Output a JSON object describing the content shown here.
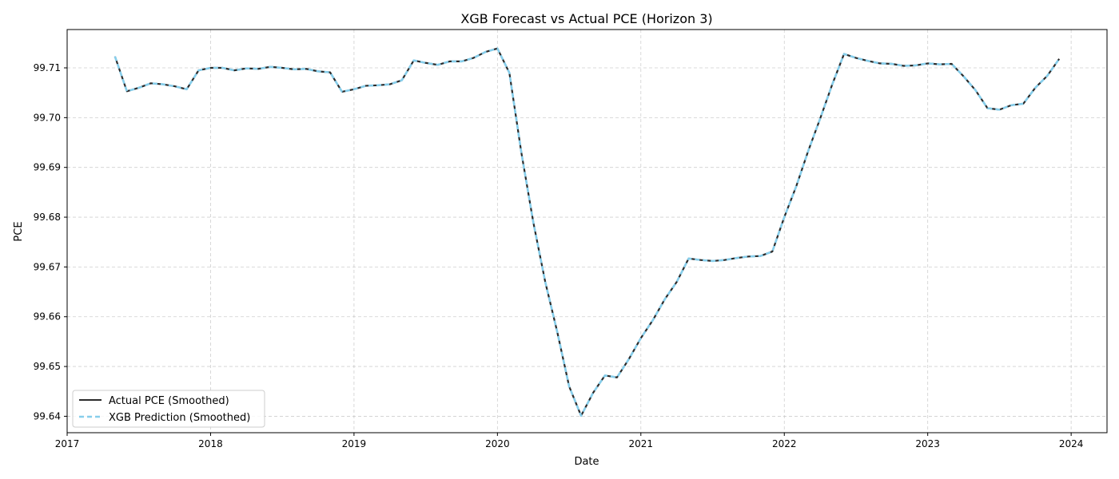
{
  "chart_data": {
    "type": "line",
    "title": "XGB Forecast vs Actual PCE (Horizon 3)",
    "xlabel": "Date",
    "ylabel": "PCE",
    "xlim": [
      "2017-01-01",
      "2024-04-01"
    ],
    "ylim": [
      99.6367,
      99.7177
    ],
    "xticks": [
      "2017",
      "2018",
      "2019",
      "2020",
      "2021",
      "2022",
      "2023",
      "2024"
    ],
    "yticks": [
      "99.64",
      "99.65",
      "99.66",
      "99.67",
      "99.68",
      "99.69",
      "99.70",
      "99.71"
    ],
    "grid": true,
    "legend_position": "lower-left",
    "x": [
      "2017-05",
      "2017-06",
      "2017-07",
      "2017-08",
      "2017-09",
      "2017-10",
      "2017-11",
      "2017-12",
      "2018-01",
      "2018-02",
      "2018-03",
      "2018-04",
      "2018-05",
      "2018-06",
      "2018-07",
      "2018-08",
      "2018-09",
      "2018-10",
      "2018-11",
      "2018-12",
      "2019-01",
      "2019-02",
      "2019-03",
      "2019-04",
      "2019-05",
      "2019-06",
      "2019-07",
      "2019-08",
      "2019-09",
      "2019-10",
      "2019-11",
      "2019-12",
      "2020-01",
      "2020-02",
      "2020-03",
      "2020-04",
      "2020-05",
      "2020-06",
      "2020-07",
      "2020-08",
      "2020-09",
      "2020-10",
      "2020-11",
      "2020-12",
      "2021-01",
      "2021-02",
      "2021-03",
      "2021-04",
      "2021-05",
      "2021-06",
      "2021-07",
      "2021-08",
      "2021-09",
      "2021-10",
      "2021-11",
      "2021-12",
      "2022-01",
      "2022-02",
      "2022-03",
      "2022-04",
      "2022-05",
      "2022-06",
      "2022-07",
      "2022-08",
      "2022-09",
      "2022-10",
      "2022-11",
      "2022-12",
      "2023-01",
      "2023-02",
      "2023-03",
      "2023-04",
      "2023-05",
      "2023-06",
      "2023-07",
      "2023-08",
      "2023-09",
      "2023-10",
      "2023-11",
      "2023-12"
    ],
    "series": [
      {
        "name": "Actual PCE (Smoothed)",
        "color": "#2b2b2b",
        "style": "solid",
        "values": [
          99.7123,
          99.7053,
          99.706,
          99.7069,
          99.7067,
          99.7063,
          99.7057,
          99.7095,
          99.71,
          99.71,
          99.7095,
          99.7099,
          99.7098,
          99.7102,
          99.71,
          99.7097,
          99.7098,
          99.7093,
          99.7091,
          99.7052,
          99.7057,
          99.7064,
          99.7065,
          99.7067,
          99.7075,
          99.7115,
          99.711,
          99.7106,
          99.7113,
          99.7113,
          99.712,
          99.7132,
          99.7139,
          99.709,
          99.693,
          99.679,
          99.667,
          99.657,
          99.646,
          99.6401,
          99.6447,
          99.6482,
          99.6478,
          99.6515,
          99.6557,
          99.6593,
          99.6635,
          99.667,
          99.6717,
          99.6714,
          99.6712,
          99.6714,
          99.6718,
          99.6721,
          99.6722,
          99.6731,
          99.68,
          99.6862,
          99.6933,
          99.6998,
          99.7066,
          99.7128,
          99.712,
          99.7114,
          99.7109,
          99.7108,
          99.7104,
          99.7105,
          99.7109,
          99.7107,
          99.7108,
          99.7083,
          99.7055,
          99.7019,
          99.7016,
          99.7025,
          99.7028,
          99.706,
          99.7084,
          99.7118
        ]
      },
      {
        "name": "XGB Prediction (Smoothed)",
        "color": "#87ceeb",
        "style": "dashed",
        "values": [
          99.7123,
          99.7053,
          99.706,
          99.7069,
          99.7067,
          99.7063,
          99.7057,
          99.7095,
          99.71,
          99.71,
          99.7095,
          99.7099,
          99.7098,
          99.7102,
          99.71,
          99.7097,
          99.7098,
          99.7093,
          99.7091,
          99.7052,
          99.7057,
          99.7064,
          99.7065,
          99.7067,
          99.7075,
          99.7115,
          99.711,
          99.7106,
          99.7113,
          99.7113,
          99.712,
          99.7132,
          99.7139,
          99.709,
          99.693,
          99.679,
          99.667,
          99.657,
          99.646,
          99.6401,
          99.6447,
          99.6482,
          99.6478,
          99.6515,
          99.6557,
          99.6593,
          99.6635,
          99.667,
          99.6717,
          99.6714,
          99.6712,
          99.6714,
          99.6718,
          99.6721,
          99.6722,
          99.6731,
          99.68,
          99.6862,
          99.6933,
          99.6998,
          99.7066,
          99.7128,
          99.712,
          99.7114,
          99.7109,
          99.7108,
          99.7104,
          99.7105,
          99.7109,
          99.7107,
          99.7108,
          99.7083,
          99.7055,
          99.7019,
          99.7016,
          99.7025,
          99.7028,
          99.706,
          99.7084,
          99.7118
        ]
      }
    ]
  }
}
